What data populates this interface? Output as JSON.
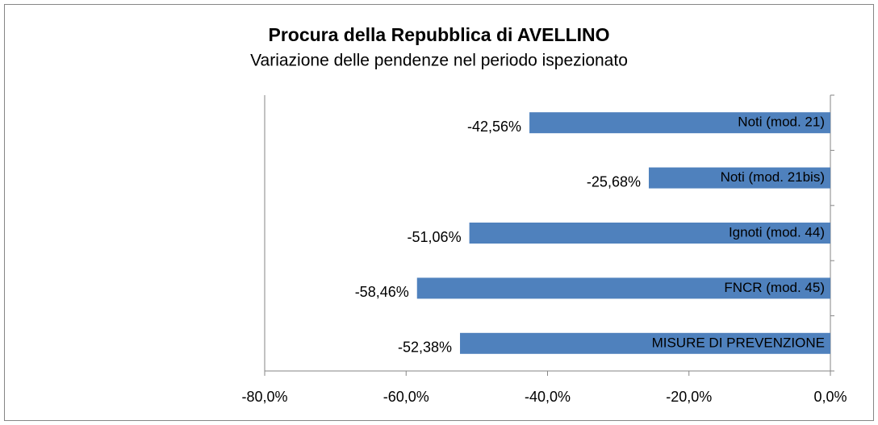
{
  "chart_data": {
    "type": "bar",
    "orientation": "horizontal",
    "title": "Procura della Repubblica di AVELLINO",
    "subtitle": "Variazione delle pendenze nel periodo ispezionato",
    "categories": [
      "Noti (mod. 21)",
      "Noti (mod. 21bis)",
      "Ignoti (mod. 44)",
      "FNCR (mod. 45)",
      "MISURE DI PREVENZIONE"
    ],
    "values": [
      -42.56,
      -25.68,
      -51.06,
      -58.46,
      -52.38
    ],
    "value_labels": [
      "-42,56%",
      "-25,68%",
      "-51,06%",
      "-58,46%",
      "-52,38%"
    ],
    "color": "#4f81bd",
    "xlim": [
      -80,
      0
    ],
    "xticks": [
      {
        "value": -80,
        "label": "-80,0%"
      },
      {
        "value": -60,
        "label": "-60,0%"
      },
      {
        "value": -40,
        "label": "-40,0%"
      },
      {
        "value": -20,
        "label": "-20,0%"
      },
      {
        "value": 0,
        "label": "0,0%"
      }
    ]
  }
}
